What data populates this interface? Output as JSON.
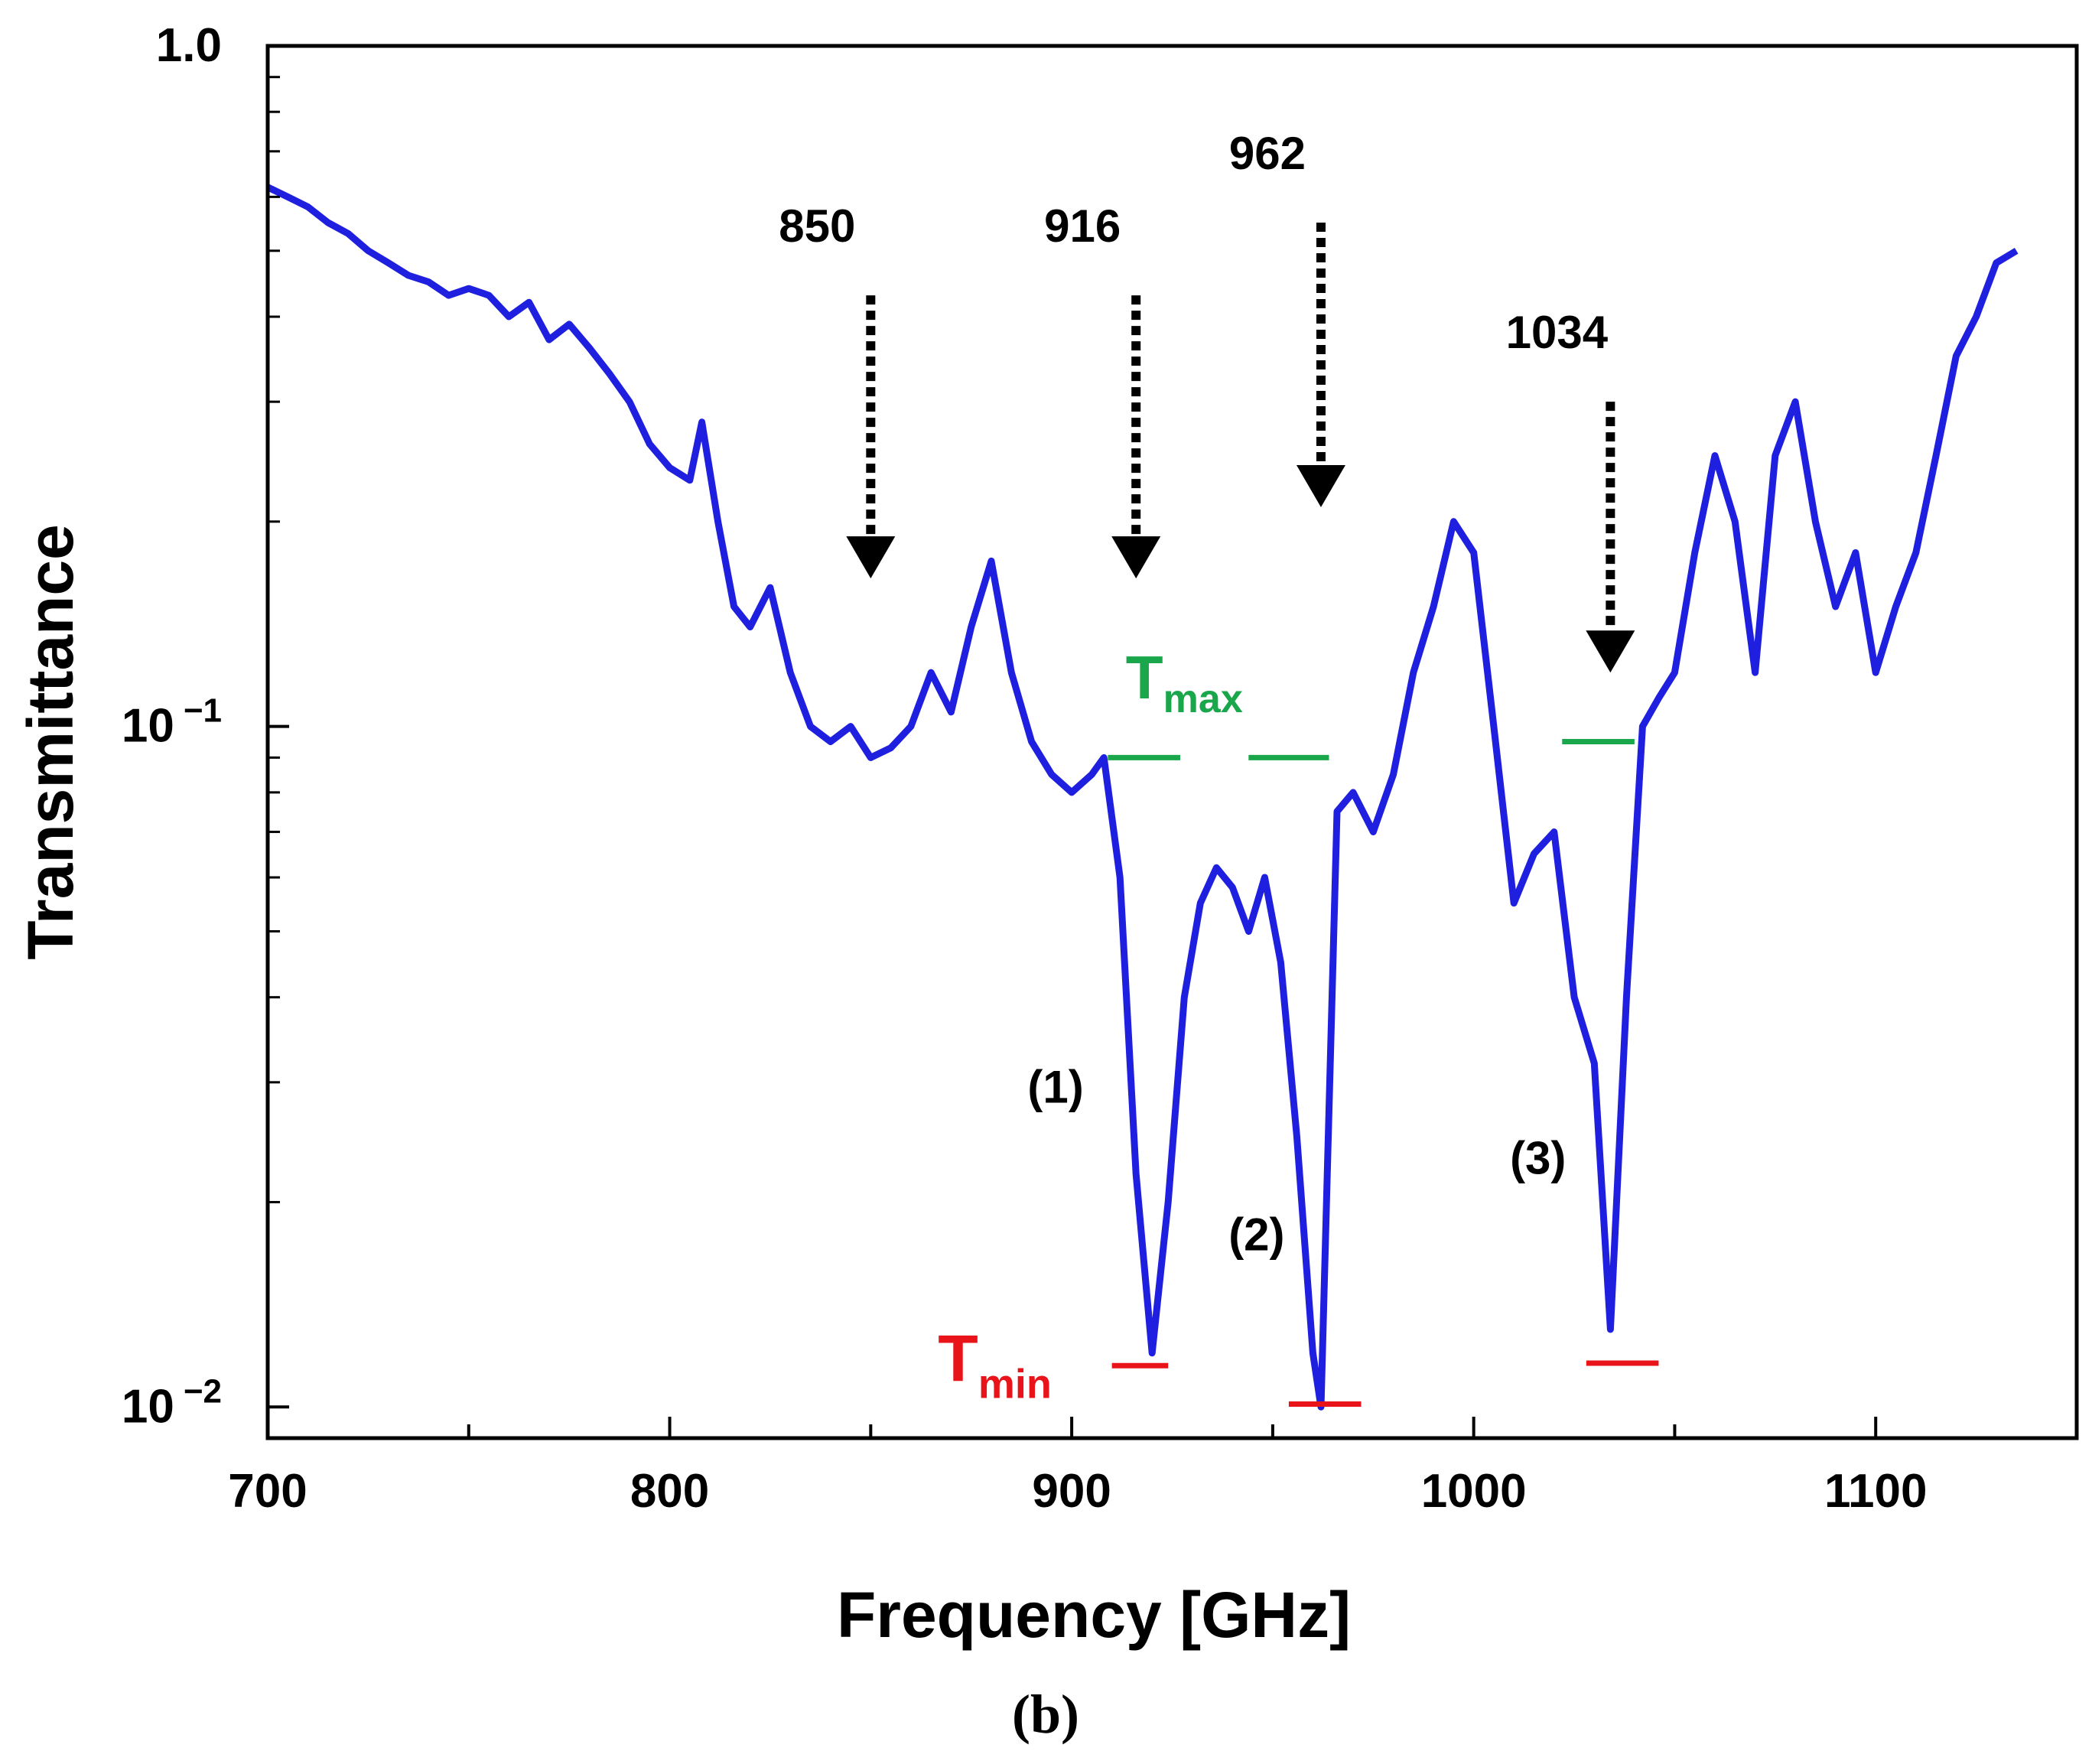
{
  "chart_data": {
    "type": "line",
    "xlabel": "Frequency [GHz]",
    "ylabel": "Transmittance",
    "yscale": "log",
    "xlim": [
      700,
      1150
    ],
    "ylim": [
      0.009,
      1.0
    ],
    "x_ticks": [
      700,
      800,
      900,
      1000,
      1100
    ],
    "x_tick_labels": [
      "700",
      "800",
      "900",
      "1000",
      "1100"
    ],
    "x_minor_ticks": [
      750,
      850,
      950,
      1050
    ],
    "y_ticks": [
      {
        "value": 1.0,
        "base": "1.0",
        "exp": ""
      },
      {
        "value": 0.1,
        "base": "10",
        "exp": "−1"
      },
      {
        "value": 0.01,
        "base": "10",
        "exp": "−2"
      }
    ],
    "series": [
      {
        "name": "Transmittance",
        "color": "#1f1fe0",
        "points": [
          [
            700,
            0.62
          ],
          [
            705,
            0.6
          ],
          [
            710,
            0.58
          ],
          [
            715,
            0.55
          ],
          [
            720,
            0.53
          ],
          [
            725,
            0.5
          ],
          [
            730,
            0.48
          ],
          [
            735,
            0.46
          ],
          [
            740,
            0.45
          ],
          [
            745,
            0.43
          ],
          [
            750,
            0.44
          ],
          [
            755,
            0.43
          ],
          [
            760,
            0.4
          ],
          [
            765,
            0.42
          ],
          [
            770,
            0.37
          ],
          [
            775,
            0.39
          ],
          [
            780,
            0.36
          ],
          [
            785,
            0.33
          ],
          [
            790,
            0.3
          ],
          [
            795,
            0.26
          ],
          [
            800,
            0.24
          ],
          [
            805,
            0.23
          ],
          [
            808,
            0.28
          ],
          [
            812,
            0.2
          ],
          [
            816,
            0.15
          ],
          [
            820,
            0.14
          ],
          [
            825,
            0.16
          ],
          [
            830,
            0.12
          ],
          [
            835,
            0.1
          ],
          [
            840,
            0.095
          ],
          [
            845,
            0.1
          ],
          [
            850,
            0.09
          ],
          [
            855,
            0.093
          ],
          [
            860,
            0.1
          ],
          [
            865,
            0.12
          ],
          [
            870,
            0.105
          ],
          [
            875,
            0.14
          ],
          [
            880,
            0.175
          ],
          [
            885,
            0.12
          ],
          [
            890,
            0.095
          ],
          [
            895,
            0.085
          ],
          [
            900,
            0.08
          ],
          [
            905,
            0.085
          ],
          [
            908,
            0.09
          ],
          [
            912,
            0.06
          ],
          [
            916,
            0.022
          ],
          [
            920,
            0.012
          ],
          [
            924,
            0.02
          ],
          [
            928,
            0.04
          ],
          [
            932,
            0.055
          ],
          [
            936,
            0.062
          ],
          [
            940,
            0.058
          ],
          [
            944,
            0.05
          ],
          [
            948,
            0.06
          ],
          [
            952,
            0.045
          ],
          [
            956,
            0.025
          ],
          [
            960,
            0.012
          ],
          [
            962,
            0.01
          ],
          [
            966,
            0.075
          ],
          [
            970,
            0.08
          ],
          [
            975,
            0.07
          ],
          [
            980,
            0.085
          ],
          [
            985,
            0.12
          ],
          [
            990,
            0.15
          ],
          [
            995,
            0.2
          ],
          [
            1000,
            0.18
          ],
          [
            1005,
            0.1
          ],
          [
            1010,
            0.055
          ],
          [
            1015,
            0.065
          ],
          [
            1020,
            0.07
          ],
          [
            1025,
            0.04
          ],
          [
            1030,
            0.032
          ],
          [
            1034,
            0.013
          ],
          [
            1038,
            0.04
          ],
          [
            1042,
            0.1
          ],
          [
            1046,
            0.11
          ],
          [
            1050,
            0.12
          ],
          [
            1055,
            0.18
          ],
          [
            1060,
            0.25
          ],
          [
            1065,
            0.2
          ],
          [
            1070,
            0.12
          ],
          [
            1075,
            0.25
          ],
          [
            1080,
            0.3
          ],
          [
            1085,
            0.2
          ],
          [
            1090,
            0.15
          ],
          [
            1095,
            0.18
          ],
          [
            1100,
            0.12
          ],
          [
            1105,
            0.15
          ],
          [
            1110,
            0.18
          ],
          [
            1115,
            0.25
          ],
          [
            1120,
            0.35
          ],
          [
            1125,
            0.4
          ],
          [
            1130,
            0.48
          ],
          [
            1135,
            0.5
          ]
        ]
      }
    ],
    "arrows": [
      {
        "label": "850",
        "x": 850,
        "y_top": 0.43,
        "y_tip": 0.165
      },
      {
        "label": "916",
        "x": 916,
        "y_top": 0.43,
        "y_tip": 0.165
      },
      {
        "label": "962",
        "x": 962,
        "y_top": 0.55,
        "y_tip": 0.21
      },
      {
        "label": "1034",
        "x": 1034,
        "y_top": 0.3,
        "y_tip": 0.12
      }
    ],
    "tmax_lines": [
      {
        "x1": 909,
        "x2": 927,
        "y": 0.09
      },
      {
        "x1": 944,
        "x2": 964,
        "y": 0.09
      },
      {
        "x1": 1022,
        "x2": 1040,
        "y": 0.095
      }
    ],
    "tmin_lines": [
      {
        "x1": 910,
        "x2": 924,
        "y": 0.0115
      },
      {
        "x1": 954,
        "x2": 972,
        "y": 0.0101
      },
      {
        "x1": 1028,
        "x2": 1046,
        "y": 0.0116
      }
    ],
    "dip_labels": [
      {
        "text": "(1)",
        "x": 896,
        "y": 0.028
      },
      {
        "text": "(2)",
        "x": 946,
        "y": 0.017
      },
      {
        "text": "(3)",
        "x": 1016,
        "y": 0.022
      }
    ],
    "tmax_label": {
      "main": "T",
      "sub": "max",
      "x": 928,
      "y": 0.11
    },
    "tmin_label": {
      "main": "T",
      "sub": "min",
      "x": 895,
      "y": 0.0115
    },
    "caption": "(b)"
  }
}
